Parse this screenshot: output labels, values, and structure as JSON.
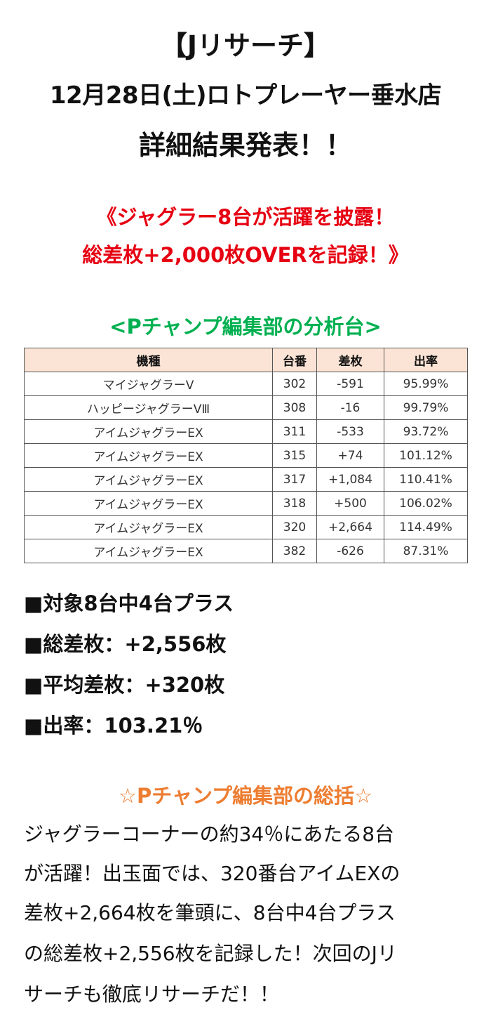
{
  "colors": {
    "headline_red": "#e60012",
    "section_green": "#00b050",
    "wrap_orange": "#ed7d31",
    "table_header_bg": "#fbe4d5"
  },
  "title": {
    "line1": "【Jリサーチ】",
    "line2": "12月28日(土)ロトプレーヤー垂水店",
    "line3": "詳細結果発表！！"
  },
  "headline": {
    "line1": "《ジャグラー8台が活躍を披露！",
    "line2": "総差枚+2,000枚OVERを記録！》"
  },
  "section_title": "<Pチャンプ編集部の分析台>",
  "table": {
    "headers": {
      "model": "機種",
      "unit": "台番",
      "diff": "差枚",
      "rate": "出率"
    },
    "rows": [
      {
        "model": "マイジャグラーV",
        "unit": "302",
        "diff": "-591",
        "rate": "95.99%"
      },
      {
        "model": "ハッピージャグラーVⅢ",
        "unit": "308",
        "diff": "-16",
        "rate": "99.79%"
      },
      {
        "model": "アイムジャグラーEX",
        "unit": "311",
        "diff": "-533",
        "rate": "93.72%"
      },
      {
        "model": "アイムジャグラーEX",
        "unit": "315",
        "diff": "+74",
        "rate": "101.12%"
      },
      {
        "model": "アイムジャグラーEX",
        "unit": "317",
        "diff": "+1,084",
        "rate": "110.41%"
      },
      {
        "model": "アイムジャグラーEX",
        "unit": "318",
        "diff": "+500",
        "rate": "106.02%"
      },
      {
        "model": "アイムジャグラーEX",
        "unit": "320",
        "diff": "+2,664",
        "rate": "114.49%"
      },
      {
        "model": "アイムジャグラーEX",
        "unit": "382",
        "diff": "-626",
        "rate": "87.31%"
      }
    ]
  },
  "summary": {
    "line1": "■対象8台中4台プラス",
    "line2": "■総差枚：+2,556枚",
    "line3": "■平均差枚：+320枚",
    "line4": "■出率：103.21％"
  },
  "wrap_title": "☆Pチャンプ編集部の総括☆",
  "body": {
    "line1": "ジャグラーコーナーの約34％にあたる8台",
    "line2": "が活躍！出玉面では、320番台アイムEXの",
    "line3": "差枚+2,664枚を筆頭に、8台中4台プラス",
    "line4": "の総差枚+2,556枚を記録した！次回のJリ",
    "line5": "サーチも徹底リサーチだ！！"
  }
}
